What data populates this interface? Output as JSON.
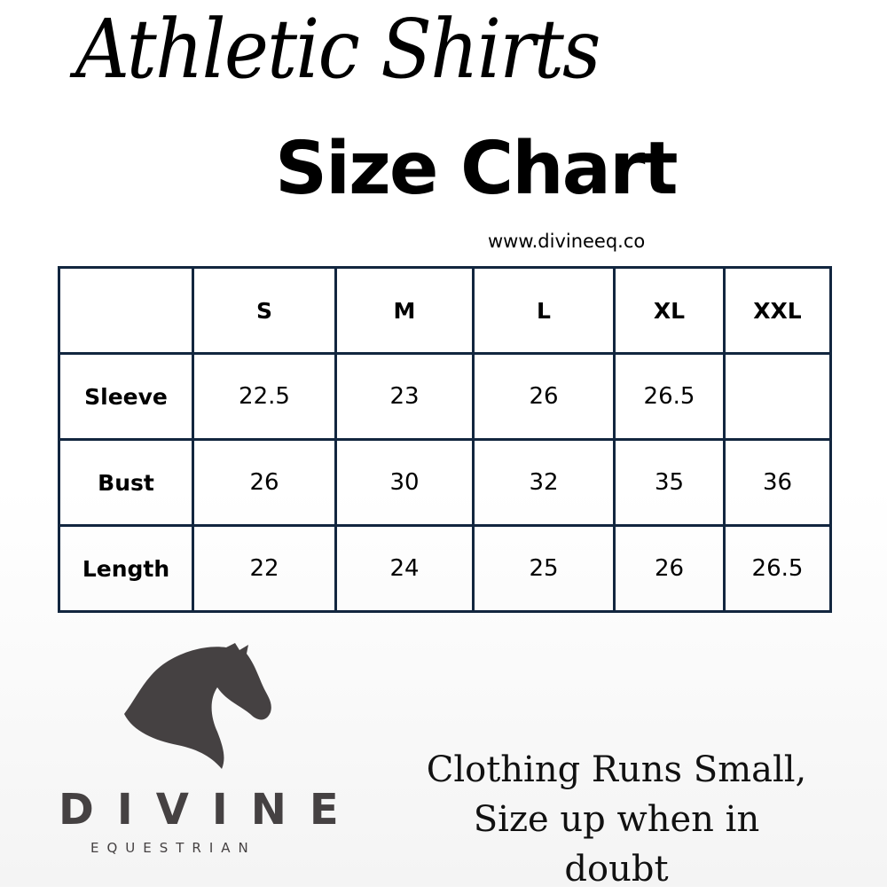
{
  "header": {
    "script_title": "Athletic Shirts",
    "title": "Size Chart",
    "website": "www.divineeq.co"
  },
  "table": {
    "colors": {
      "border": "#12263f"
    },
    "columns": [
      "",
      "S",
      "M",
      "L",
      "XL",
      "XXL"
    ],
    "rows": [
      {
        "label": "Sleeve",
        "values": [
          "22.5",
          "23",
          "26",
          "26.5",
          ""
        ]
      },
      {
        "label": "Bust",
        "values": [
          "26",
          "30",
          "32",
          "35",
          "36"
        ]
      },
      {
        "label": "Length",
        "values": [
          "22",
          "24",
          "25",
          "26",
          "26.5"
        ]
      }
    ]
  },
  "logo": {
    "icon": "horse-head-icon",
    "brand": "DIVINE",
    "subtitle": "EQUESTRIAN",
    "color": "#454142"
  },
  "note": {
    "line1": "Clothing Runs Small,",
    "line2": "Size up when in doubt"
  }
}
